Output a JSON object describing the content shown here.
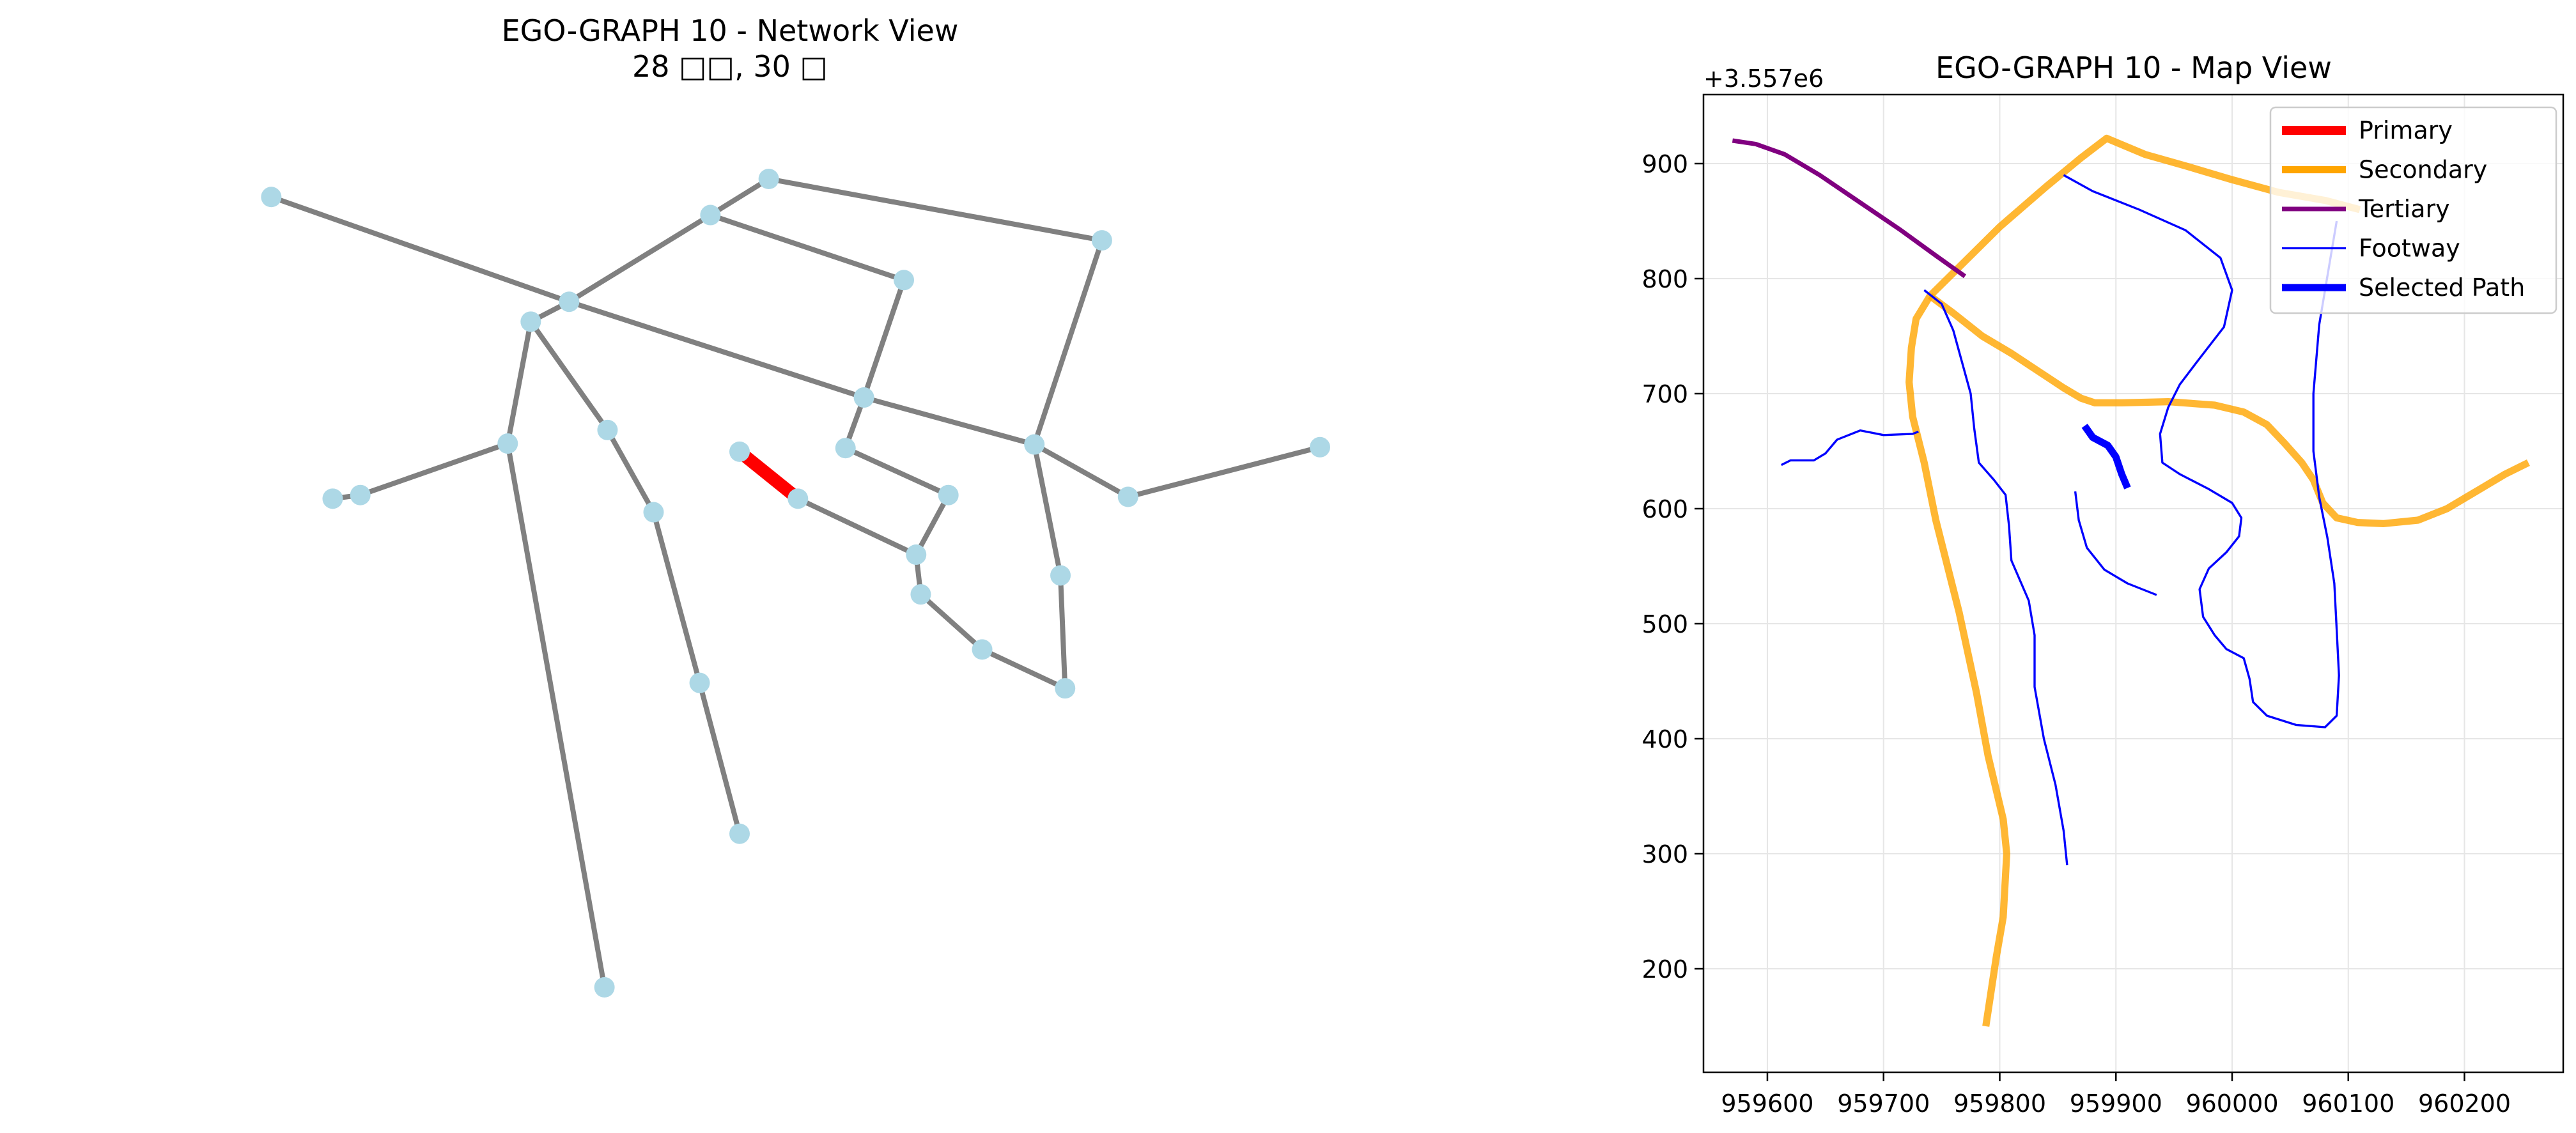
{
  "chart_data": [
    {
      "type": "network",
      "title": "EGO-GRAPH 10 - Network View",
      "subtitle": "28 □□, 30 □",
      "node_color": "#add8e6",
      "edge_color": "#808080",
      "highlight_color": "#ff0000",
      "nodes": [
        {
          "id": 0,
          "x": 0.083,
          "y": 0.845
        },
        {
          "id": 1,
          "x": 0.407,
          "y": 0.865
        },
        {
          "id": 2,
          "x": 0.369,
          "y": 0.825
        },
        {
          "id": 3,
          "x": 0.277,
          "y": 0.729
        },
        {
          "id": 4,
          "x": 0.252,
          "y": 0.707
        },
        {
          "id": 5,
          "x": 0.624,
          "y": 0.797
        },
        {
          "id": 6,
          "x": 0.495,
          "y": 0.753
        },
        {
          "id": 7,
          "x": 0.469,
          "y": 0.623
        },
        {
          "id": 8,
          "x": 0.237,
          "y": 0.572
        },
        {
          "id": 9,
          "x": 0.302,
          "y": 0.587
        },
        {
          "id": 10,
          "x": 0.123,
          "y": 0.511
        },
        {
          "id": 11,
          "x": 0.141,
          "y": 0.515
        },
        {
          "id": 12,
          "x": 0.388,
          "y": 0.563
        },
        {
          "id": 13,
          "x": 0.426,
          "y": 0.511
        },
        {
          "id": 14,
          "x": 0.457,
          "y": 0.567
        },
        {
          "id": 15,
          "x": 0.524,
          "y": 0.515
        },
        {
          "id": 16,
          "x": 0.58,
          "y": 0.571
        },
        {
          "id": 17,
          "x": 0.641,
          "y": 0.513
        },
        {
          "id": 18,
          "x": 0.766,
          "y": 0.568
        },
        {
          "id": 19,
          "x": 0.332,
          "y": 0.496
        },
        {
          "id": 20,
          "x": 0.503,
          "y": 0.449
        },
        {
          "id": 21,
          "x": 0.506,
          "y": 0.405
        },
        {
          "id": 22,
          "x": 0.597,
          "y": 0.426
        },
        {
          "id": 23,
          "x": 0.362,
          "y": 0.307
        },
        {
          "id": 24,
          "x": 0.546,
          "y": 0.344
        },
        {
          "id": 25,
          "x": 0.6,
          "y": 0.301
        },
        {
          "id": 26,
          "x": 0.388,
          "y": 0.14
        },
        {
          "id": 27,
          "x": 0.3,
          "y": -0.03
        }
      ],
      "edges": [
        {
          "from": 0,
          "to": 3
        },
        {
          "from": 3,
          "to": 2
        },
        {
          "from": 2,
          "to": 1
        },
        {
          "from": 1,
          "to": 5
        },
        {
          "from": 2,
          "to": 6
        },
        {
          "from": 6,
          "to": 7
        },
        {
          "from": 3,
          "to": 7
        },
        {
          "from": 7,
          "to": 16
        },
        {
          "from": 5,
          "to": 16
        },
        {
          "from": 16,
          "to": 17
        },
        {
          "from": 17,
          "to": 18
        },
        {
          "from": 16,
          "to": 22
        },
        {
          "from": 22,
          "to": 25
        },
        {
          "from": 25,
          "to": 24
        },
        {
          "from": 24,
          "to": 21
        },
        {
          "from": 21,
          "to": 20
        },
        {
          "from": 20,
          "to": 15
        },
        {
          "from": 15,
          "to": 14
        },
        {
          "from": 14,
          "to": 7
        },
        {
          "from": 20,
          "to": 13
        },
        {
          "from": 12,
          "to": 13,
          "highlight": true
        },
        {
          "from": 4,
          "to": 3
        },
        {
          "from": 4,
          "to": 8
        },
        {
          "from": 8,
          "to": 11
        },
        {
          "from": 11,
          "to": 10
        },
        {
          "from": 8,
          "to": 27
        },
        {
          "from": 4,
          "to": 9
        },
        {
          "from": 9,
          "to": 19
        },
        {
          "from": 19,
          "to": 23
        },
        {
          "from": 23,
          "to": 26
        }
      ]
    },
    {
      "type": "line",
      "title": "EGO-GRAPH 10 - Map View",
      "offset_label": "+3.557e6",
      "xlim": [
        959545,
        960285
      ],
      "ylim": [
        110,
        960
      ],
      "xticks": [
        959600,
        959700,
        959800,
        959900,
        960000,
        960100,
        960200
      ],
      "yticks": [
        200,
        300,
        400,
        500,
        600,
        700,
        800,
        900
      ],
      "xtick_labels": [
        "959600",
        "959700",
        "959800",
        "959900",
        "960000",
        "960100",
        "960200"
      ],
      "ytick_labels": [
        "200",
        "300",
        "400",
        "500",
        "600",
        "700",
        "800",
        "900"
      ],
      "grid": true,
      "legend_position": "top-right",
      "legend": [
        {
          "label": "Primary",
          "color": "#ff0000",
          "width": 5
        },
        {
          "label": "Secondary",
          "color": "#ffa500",
          "width": 4
        },
        {
          "label": "Tertiary",
          "color": "#800080",
          "width": 2.5
        },
        {
          "label": "Footway",
          "color": "#0000ff",
          "width": 1.2
        },
        {
          "label": "Selected Path",
          "color": "#0000ff",
          "width": 4
        }
      ],
      "series": [
        {
          "category": "Secondary",
          "points": [
            [
              959788,
              150
            ],
            [
              959797,
              210
            ],
            [
              959803,
              245
            ],
            [
              959806,
              300
            ],
            [
              959803,
              330
            ],
            [
              959790,
              385
            ],
            [
              959780,
              440
            ],
            [
              959765,
              510
            ],
            [
              959745,
              590
            ],
            [
              959735,
              640
            ],
            [
              959725,
              680
            ],
            [
              959722,
              710
            ],
            [
              959724,
              740
            ],
            [
              959728,
              765
            ],
            [
              959740,
              785
            ],
            [
              959765,
              810
            ],
            [
              959800,
              845
            ],
            [
              959840,
              880
            ],
            [
              959870,
              905
            ],
            [
              959892,
              922
            ],
            [
              959925,
              908
            ],
            [
              959960,
              898
            ],
            [
              960000,
              886
            ],
            [
              960040,
              875
            ],
            [
              960080,
              868
            ],
            [
              960110,
              860
            ]
          ]
        },
        {
          "category": "Secondary",
          "points": [
            [
              959740,
              785
            ],
            [
              959760,
              770
            ],
            [
              959785,
              750
            ],
            [
              959810,
              735
            ],
            [
              959825,
              725
            ],
            [
              959840,
              715
            ],
            [
              959855,
              705
            ],
            [
              959870,
              696
            ],
            [
              959882,
              692
            ],
            [
              959905,
              692
            ],
            [
              959945,
              693
            ],
            [
              959985,
              690
            ],
            [
              960010,
              684
            ],
            [
              960030,
              673
            ],
            [
              960045,
              657
            ],
            [
              960060,
              640
            ],
            [
              960070,
              625
            ],
            [
              960078,
              605
            ],
            [
              960090,
              592
            ],
            [
              960108,
              588
            ],
            [
              960130,
              587
            ],
            [
              960160,
              590
            ],
            [
              960185,
              600
            ],
            [
              960210,
              615
            ],
            [
              960235,
              630
            ],
            [
              960255,
              640
            ]
          ]
        },
        {
          "category": "Tertiary",
          "points": [
            [
              959570,
              920
            ],
            [
              959590,
              917
            ],
            [
              959615,
              908
            ],
            [
              959645,
              890
            ],
            [
              959680,
              866
            ],
            [
              959715,
              842
            ],
            [
              959745,
              820
            ],
            [
              959770,
              802
            ]
          ]
        },
        {
          "category": "Footway",
          "points": [
            [
              959612,
              638
            ],
            [
              959620,
              642
            ],
            [
              959640,
              642
            ],
            [
              959650,
              648
            ],
            [
              959660,
              660
            ],
            [
              959680,
              668
            ],
            [
              959700,
              664
            ],
            [
              959725,
              665
            ],
            [
              959730,
              667
            ]
          ]
        },
        {
          "category": "Footway",
          "points": [
            [
              959735,
              790
            ],
            [
              959750,
              778
            ],
            [
              959760,
              755
            ],
            [
              959775,
              700
            ],
            [
              959778,
              670
            ],
            [
              959782,
              640
            ],
            [
              959795,
              625
            ],
            [
              959805,
              612
            ],
            [
              959808,
              585
            ],
            [
              959810,
              555
            ],
            [
              959825,
              520
            ],
            [
              959830,
              490
            ],
            [
              959830,
              445
            ],
            [
              959838,
              400
            ],
            [
              959848,
              360
            ],
            [
              959855,
              320
            ],
            [
              959858,
              290
            ]
          ]
        },
        {
          "category": "Footway",
          "points": [
            [
              959855,
              890
            ],
            [
              959880,
              876
            ],
            [
              959920,
              860
            ],
            [
              959960,
              842
            ],
            [
              959990,
              818
            ],
            [
              960000,
              790
            ],
            [
              959993,
              758
            ],
            [
              959970,
              728
            ],
            [
              959955,
              708
            ],
            [
              959945,
              688
            ],
            [
              959938,
              665
            ],
            [
              959940,
              640
            ],
            [
              959955,
              630
            ],
            [
              959980,
              617
            ],
            [
              960000,
              605
            ],
            [
              960008,
              592
            ],
            [
              960006,
              576
            ],
            [
              959995,
              562
            ],
            [
              959980,
              548
            ],
            [
              959972,
              530
            ],
            [
              959975,
              506
            ],
            [
              959985,
              490
            ],
            [
              959995,
              478
            ],
            [
              960010,
              470
            ],
            [
              960015,
              452
            ],
            [
              960018,
              432
            ],
            [
              960030,
              420
            ],
            [
              960055,
              412
            ],
            [
              960080,
              410
            ],
            [
              960090,
              420
            ],
            [
              960092,
              455
            ],
            [
              960090,
              495
            ],
            [
              960088,
              535
            ],
            [
              960082,
              575
            ],
            [
              960075,
              610
            ],
            [
              960070,
              650
            ],
            [
              960070,
              700
            ],
            [
              960075,
              760
            ],
            [
              960085,
              820
            ],
            [
              960090,
              850
            ]
          ]
        },
        {
          "category": "Footway",
          "points": [
            [
              959935,
              525
            ],
            [
              959910,
              535
            ],
            [
              959890,
              547
            ],
            [
              959875,
              566
            ],
            [
              959868,
              590
            ],
            [
              959865,
              615
            ]
          ]
        },
        {
          "category": "Selected Path",
          "points": [
            [
              959873,
              672
            ],
            [
              959880,
              662
            ],
            [
              959893,
              655
            ],
            [
              959900,
              645
            ],
            [
              959905,
              630
            ],
            [
              959910,
              618
            ]
          ]
        }
      ]
    }
  ]
}
